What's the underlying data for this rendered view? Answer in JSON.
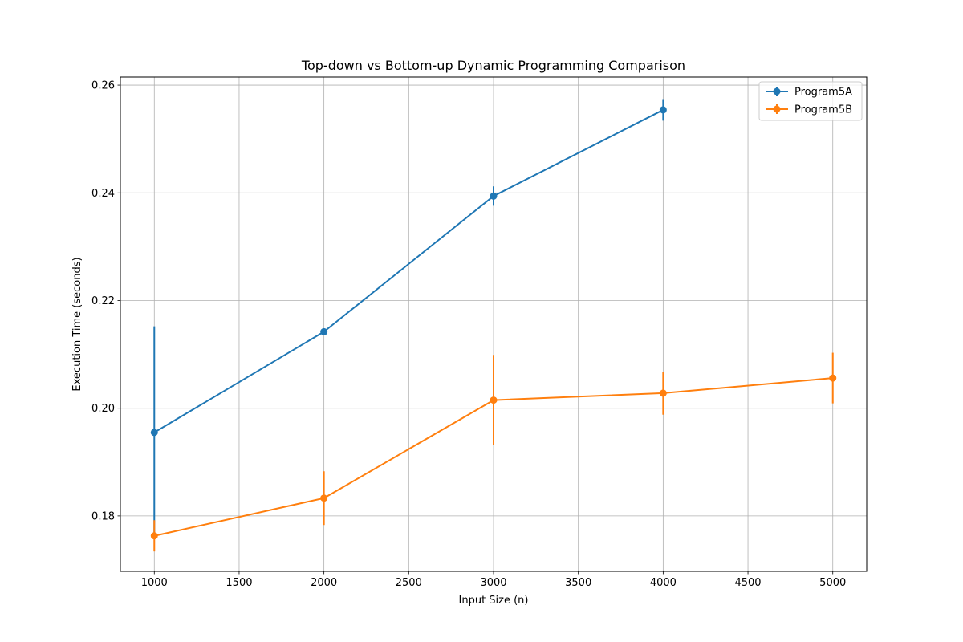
{
  "chart_data": {
    "type": "line",
    "title": "Top-down vs Bottom-up Dynamic Programming Comparison",
    "xlabel": "Input Size (n)",
    "ylabel": "Execution Time (seconds)",
    "xlim": [
      800,
      5200
    ],
    "ylim": [
      0.1697,
      0.2615
    ],
    "xticks": [
      1000,
      1500,
      2000,
      2500,
      3000,
      3500,
      4000,
      4500,
      5000
    ],
    "yticks": [
      0.18,
      0.2,
      0.22,
      0.24,
      0.26
    ],
    "ytick_labels": [
      "0.18",
      "0.20",
      "0.22",
      "0.24",
      "0.26"
    ],
    "grid": true,
    "legend_position": "top-right",
    "series": [
      {
        "name": "Program5A",
        "color": "#1f77b4",
        "x": [
          1000,
          2000,
          3000,
          4000
        ],
        "y": [
          0.1955,
          0.2142,
          0.2394,
          0.2554
        ],
        "yerr": [
          0.0197,
          0.0002,
          0.0018,
          0.002
        ]
      },
      {
        "name": "Program5B",
        "color": "#ff7f0e",
        "x": [
          1000,
          2000,
          3000,
          4000,
          5000
        ],
        "y": [
          0.1763,
          0.1833,
          0.2015,
          0.2028,
          0.2056
        ],
        "yerr": [
          0.0029,
          0.005,
          0.0084,
          0.004,
          0.0047
        ]
      }
    ]
  }
}
